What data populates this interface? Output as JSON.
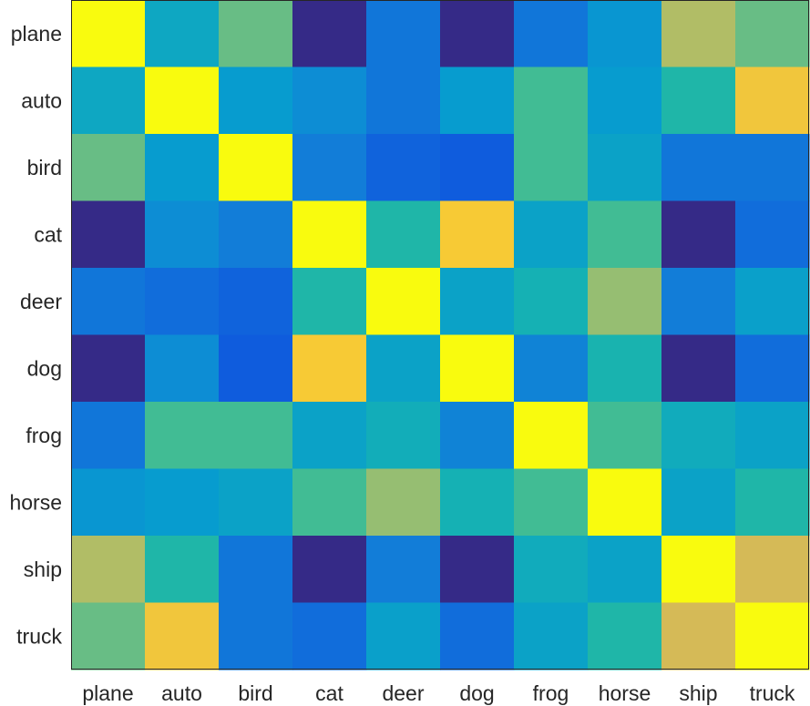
{
  "chart_data": {
    "type": "heatmap",
    "rows": [
      "plane",
      "auto",
      "bird",
      "cat",
      "deer",
      "dog",
      "frog",
      "horse",
      "ship",
      "truck"
    ],
    "columns": [
      "plane",
      "auto",
      "bird",
      "cat",
      "deer",
      "dog",
      "frog",
      "horse",
      "ship",
      "truck"
    ],
    "values": [
      [
        1.0,
        0.35,
        0.62,
        0.0,
        0.18,
        0.0,
        0.18,
        0.28,
        0.72,
        0.62
      ],
      [
        0.35,
        1.0,
        0.3,
        0.25,
        0.18,
        0.3,
        0.55,
        0.3,
        0.45,
        0.86
      ],
      [
        0.62,
        0.3,
        1.0,
        0.2,
        0.12,
        0.1,
        0.55,
        0.33,
        0.18,
        0.18
      ],
      [
        0.0,
        0.25,
        0.2,
        1.0,
        0.45,
        0.88,
        0.33,
        0.55,
        0.0,
        0.15
      ],
      [
        0.18,
        0.15,
        0.12,
        0.45,
        1.0,
        0.33,
        0.4,
        0.68,
        0.2,
        0.32
      ],
      [
        0.0,
        0.25,
        0.1,
        0.88,
        0.33,
        1.0,
        0.22,
        0.42,
        0.0,
        0.15
      ],
      [
        0.18,
        0.55,
        0.55,
        0.33,
        0.38,
        0.22,
        1.0,
        0.55,
        0.37,
        0.33
      ],
      [
        0.28,
        0.3,
        0.33,
        0.55,
        0.68,
        0.4,
        0.55,
        1.0,
        0.33,
        0.45
      ],
      [
        0.72,
        0.45,
        0.18,
        0.0,
        0.2,
        0.0,
        0.37,
        0.33,
        1.0,
        0.78
      ],
      [
        0.62,
        0.86,
        0.18,
        0.15,
        0.32,
        0.15,
        0.33,
        0.45,
        0.78,
        1.0
      ]
    ],
    "colormap": "parula",
    "clim": [
      0,
      1
    ],
    "title": "",
    "xlabel": "",
    "ylabel": "",
    "grid": false,
    "legend": "none"
  }
}
